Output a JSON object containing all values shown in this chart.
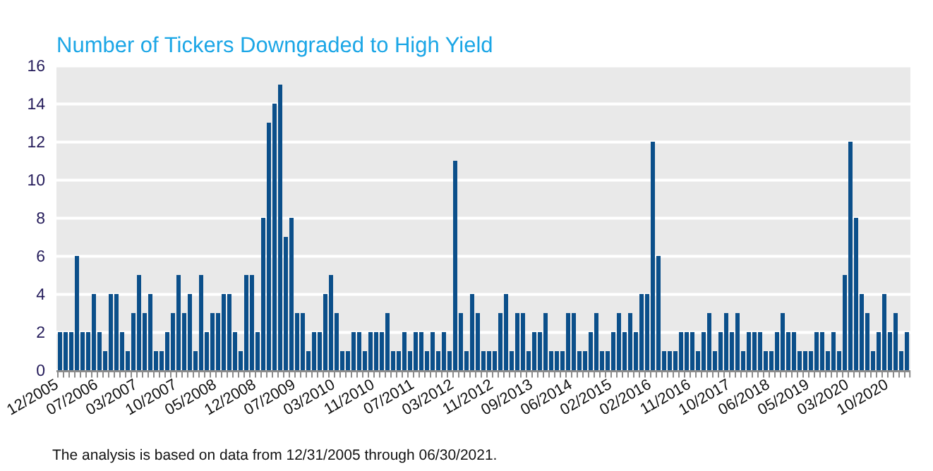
{
  "chart_data": {
    "type": "bar",
    "title": "Number of Tickers Downgraded to High Yield",
    "categories": [
      "12/2005",
      null,
      null,
      null,
      null,
      null,
      null,
      "07/2006",
      null,
      null,
      null,
      null,
      null,
      null,
      "03/2007",
      null,
      null,
      null,
      null,
      null,
      null,
      "10/2007",
      null,
      null,
      null,
      null,
      null,
      null,
      "05/2008",
      null,
      null,
      null,
      null,
      null,
      null,
      "12/2008",
      null,
      null,
      null,
      null,
      null,
      null,
      "07/2009",
      null,
      null,
      null,
      null,
      null,
      null,
      "03/2010",
      null,
      null,
      null,
      null,
      null,
      null,
      "11/2010",
      null,
      null,
      null,
      null,
      null,
      null,
      "07/2011",
      null,
      null,
      null,
      null,
      null,
      null,
      "03/2012",
      null,
      null,
      null,
      null,
      null,
      null,
      "11/2012",
      null,
      null,
      null,
      null,
      null,
      null,
      "09/2013",
      null,
      null,
      null,
      null,
      null,
      null,
      "06/2014",
      null,
      null,
      null,
      null,
      null,
      null,
      "02/2015",
      null,
      null,
      null,
      null,
      null,
      null,
      "02/2016",
      null,
      null,
      null,
      null,
      null,
      null,
      "11/2016",
      null,
      null,
      null,
      null,
      null,
      null,
      "10/2017",
      null,
      null,
      null,
      null,
      null,
      null,
      "06/2018",
      null,
      null,
      null,
      null,
      null,
      null,
      "05/2019",
      null,
      null,
      null,
      null,
      null,
      null,
      "03/2020",
      null,
      null,
      null,
      null,
      null,
      null,
      "10/2020",
      null,
      null,
      null
    ],
    "values": [
      2,
      2,
      2,
      6,
      2,
      2,
      4,
      2,
      1,
      4,
      4,
      2,
      1,
      3,
      5,
      3,
      4,
      1,
      1,
      2,
      3,
      5,
      3,
      4,
      1,
      5,
      2,
      3,
      3,
      4,
      4,
      2,
      1,
      5,
      5,
      2,
      8,
      13,
      14,
      15,
      7,
      8,
      3,
      3,
      1,
      2,
      2,
      4,
      5,
      3,
      1,
      1,
      2,
      2,
      1,
      2,
      2,
      2,
      3,
      1,
      1,
      2,
      1,
      2,
      2,
      1,
      2,
      1,
      2,
      1,
      11,
      3,
      1,
      4,
      3,
      1,
      1,
      1,
      3,
      4,
      1,
      3,
      3,
      1,
      2,
      2,
      3,
      1,
      1,
      1,
      3,
      3,
      1,
      1,
      2,
      3,
      1,
      1,
      2,
      3,
      2,
      3,
      2,
      4,
      4,
      12,
      6,
      1,
      1,
      1,
      2,
      2,
      2,
      1,
      2,
      3,
      1,
      2,
      3,
      2,
      3,
      1,
      2,
      2,
      2,
      1,
      1,
      2,
      3,
      2,
      2,
      1,
      1,
      1,
      2,
      2,
      1,
      2,
      1,
      5,
      12,
      8,
      4,
      3,
      1,
      2,
      4,
      2,
      3,
      1,
      2
    ],
    "color": "#0b4f8a",
    "ylim": [
      0,
      16
    ],
    "yticks": [
      0,
      2,
      4,
      6,
      8,
      10,
      12,
      14,
      16
    ],
    "grid": "y",
    "annotations": [
      "The analysis is based on data from 12/31/2005 through 06/30/2021."
    ]
  }
}
